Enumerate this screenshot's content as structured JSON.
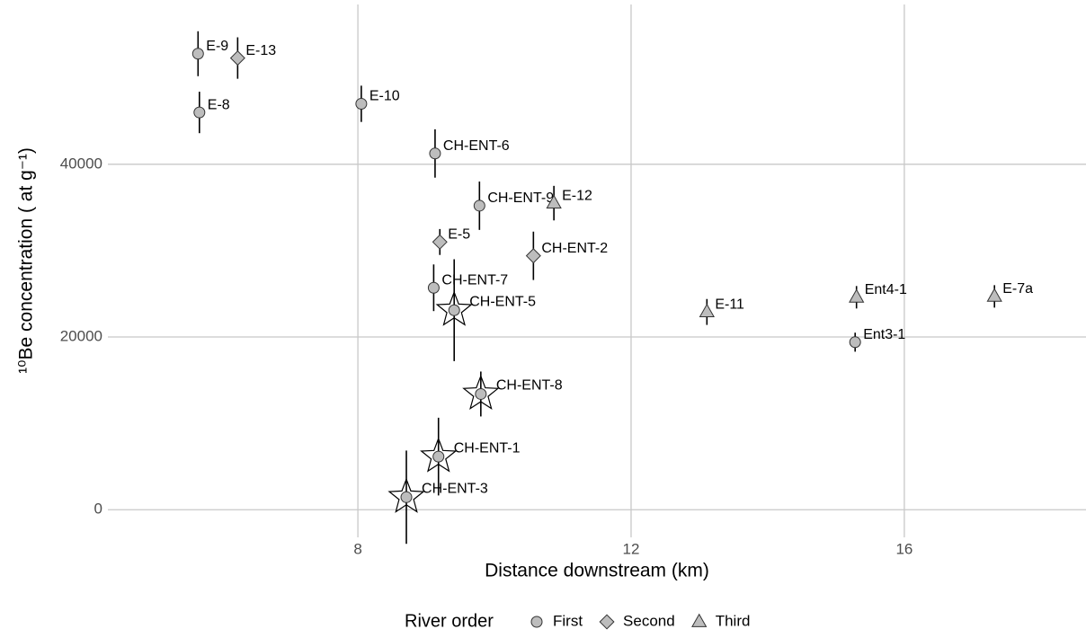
{
  "chart_data": {
    "type": "scatter",
    "x_label": "Distance downstream (km)",
    "y_label": "¹⁰Be concentration ( at g⁻¹)",
    "xlim": [
      4.34,
      18.66
    ],
    "ylim": [
      -3200,
      58500
    ],
    "xticks": [
      8,
      12,
      16
    ],
    "yticks": [
      0,
      20000,
      40000
    ],
    "grid": true,
    "legend_title": "River order",
    "legend_position": "bottom",
    "series": [
      {
        "name": "First",
        "marker": "circle",
        "color": "#bdbdbd",
        "labels": [
          "E-9",
          "E-8",
          "E-10",
          "CH-ENT-6",
          "CH-ENT-9",
          "CH-ENT-7",
          "CH-ENT-5",
          "Ent3-1",
          "CH-ENT-8",
          "CH-ENT-1",
          "CH-ENT-3"
        ],
        "x": [
          5.66,
          5.68,
          8.05,
          9.13,
          9.78,
          9.11,
          9.41,
          15.28,
          9.8,
          9.18,
          8.71
        ],
        "values": [
          52800,
          46000,
          47000,
          41250,
          35200,
          25700,
          23100,
          19400,
          13400,
          6150,
          1450
        ],
        "errors": [
          2600,
          2400,
          2100,
          2800,
          2800,
          2700,
          5900,
          1100,
          2600,
          4500,
          5400
        ],
        "starred": [
          false,
          false,
          false,
          false,
          false,
          false,
          true,
          false,
          true,
          true,
          true
        ]
      },
      {
        "name": "Second",
        "marker": "diamond",
        "color": "#bdbdbd",
        "labels": [
          "E-13",
          "E-5",
          "CH-ENT-2"
        ],
        "x": [
          6.24,
          9.2,
          10.57
        ],
        "values": [
          52300,
          31000,
          29400
        ],
        "errors": [
          2400,
          1500,
          2800
        ],
        "starred": [
          false,
          false,
          false
        ]
      },
      {
        "name": "Third",
        "marker": "triangle",
        "color": "#bdbdbd",
        "labels": [
          "E-12",
          "E-11",
          "Ent4-1",
          "E-7a"
        ],
        "x": [
          10.87,
          13.11,
          15.3,
          17.32
        ],
        "values": [
          35500,
          22900,
          24600,
          24700
        ],
        "errors": [
          2000,
          1500,
          1300,
          1300
        ],
        "starred": [
          false,
          false,
          false,
          false
        ]
      }
    ]
  }
}
